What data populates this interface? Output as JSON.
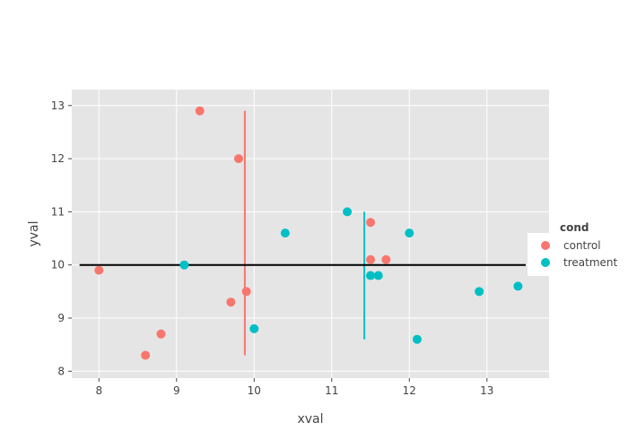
{
  "chart_data": {
    "type": "scatter",
    "xlabel": "xval",
    "ylabel": "yval",
    "xlim": [
      7.65,
      13.8
    ],
    "ylim": [
      7.87,
      13.3
    ],
    "xticks": [
      8,
      9,
      10,
      11,
      12,
      13
    ],
    "yticks": [
      8,
      9,
      10,
      11,
      12,
      13
    ],
    "grid": true,
    "background": "#e5e5e5",
    "legend": {
      "title": "cond",
      "position": "right"
    },
    "series": [
      {
        "name": "control",
        "color": "#f8766d",
        "points": [
          {
            "x": 8.0,
            "y": 9.9
          },
          {
            "x": 8.6,
            "y": 8.3
          },
          {
            "x": 8.8,
            "y": 8.7
          },
          {
            "x": 9.3,
            "y": 12.9
          },
          {
            "x": 9.7,
            "y": 9.3
          },
          {
            "x": 9.8,
            "y": 12.0
          },
          {
            "x": 9.9,
            "y": 9.5
          },
          {
            "x": 11.5,
            "y": 10.8
          },
          {
            "x": 11.5,
            "y": 10.1
          },
          {
            "x": 11.7,
            "y": 10.1
          }
        ],
        "vline": {
          "x": 9.88,
          "ymin": 8.3,
          "ymax": 12.9
        }
      },
      {
        "name": "treatment",
        "color": "#00bfc4",
        "points": [
          {
            "x": 9.1,
            "y": 10.0
          },
          {
            "x": 10.0,
            "y": 8.8
          },
          {
            "x": 10.4,
            "y": 10.6
          },
          {
            "x": 11.2,
            "y": 11.0
          },
          {
            "x": 11.5,
            "y": 9.8
          },
          {
            "x": 11.6,
            "y": 9.8
          },
          {
            "x": 12.0,
            "y": 10.6
          },
          {
            "x": 12.1,
            "y": 8.6
          },
          {
            "x": 12.9,
            "y": 9.5
          },
          {
            "x": 13.4,
            "y": 9.6
          }
        ],
        "vline": {
          "x": 11.42,
          "ymin": 8.6,
          "ymax": 11.0
        }
      }
    ],
    "hline": {
      "y": 10,
      "xmin": 7.75,
      "xmax": 13.5,
      "color": "#000000"
    }
  }
}
